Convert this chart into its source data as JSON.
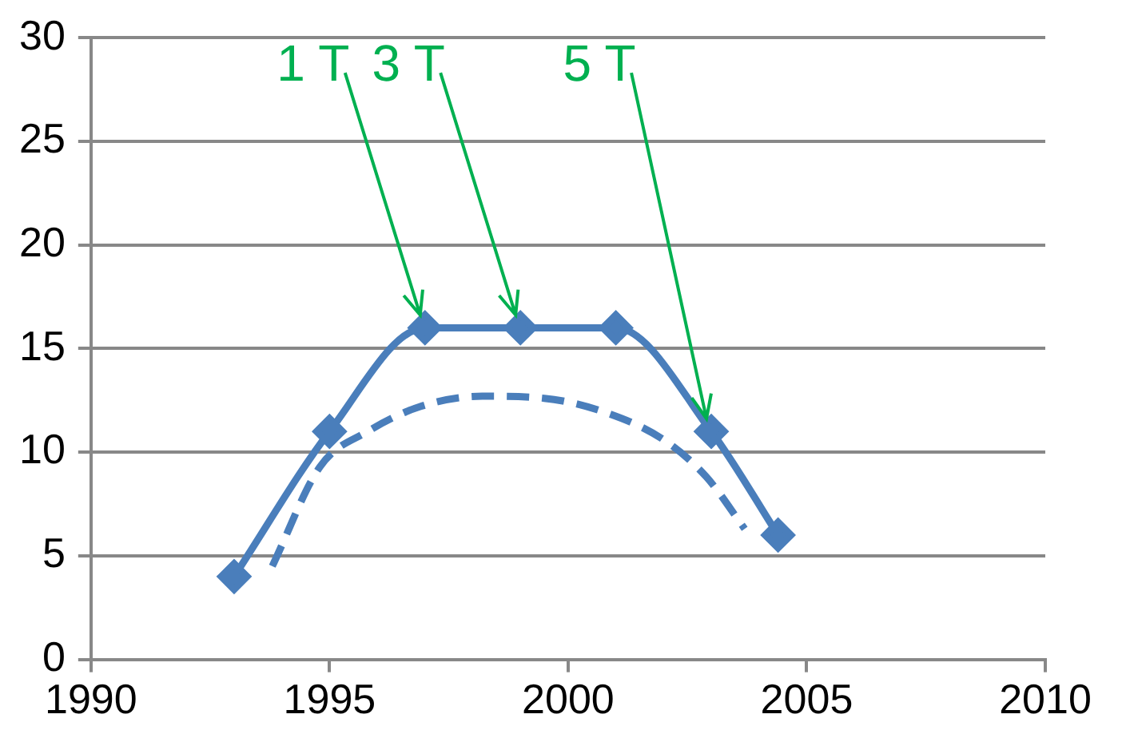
{
  "chart_data": {
    "type": "line",
    "series": [
      {
        "color": "#4a7ebb",
        "marker": "diamond",
        "line_style": "solid",
        "x": [
          1993,
          1995,
          1997,
          1999,
          2001,
          2003,
          2004.4
        ],
        "values": [
          4,
          11,
          16,
          16,
          16,
          11,
          6
        ]
      },
      {
        "color": "#4a7ebb",
        "marker": "none",
        "line_style": "dashed",
        "x": [
          1993.8,
          1994.8,
          1995.8,
          1996.9,
          1998.2,
          1999.5,
          2000.8,
          2002.0,
          2002.9,
          2003.7
        ],
        "values": [
          4.5,
          9.3,
          11.0,
          12.2,
          12.7,
          12.6,
          11.9,
          10.6,
          8.8,
          6.3
        ]
      }
    ],
    "xlim": [
      1990,
      2010
    ],
    "xticks": [
      1990,
      1995,
      2000,
      2005,
      2010
    ],
    "ylim": [
      0,
      30
    ],
    "yticks": [
      0,
      5,
      10,
      15,
      20,
      25,
      30
    ],
    "grid": "y",
    "legend": false,
    "annotations": [
      {
        "text": "1 T",
        "x": 1997,
        "y": 16
      },
      {
        "text": "3 T",
        "x": 1999,
        "y": 16
      },
      {
        "text": "5 T",
        "x": 2003,
        "y": 11
      }
    ]
  }
}
